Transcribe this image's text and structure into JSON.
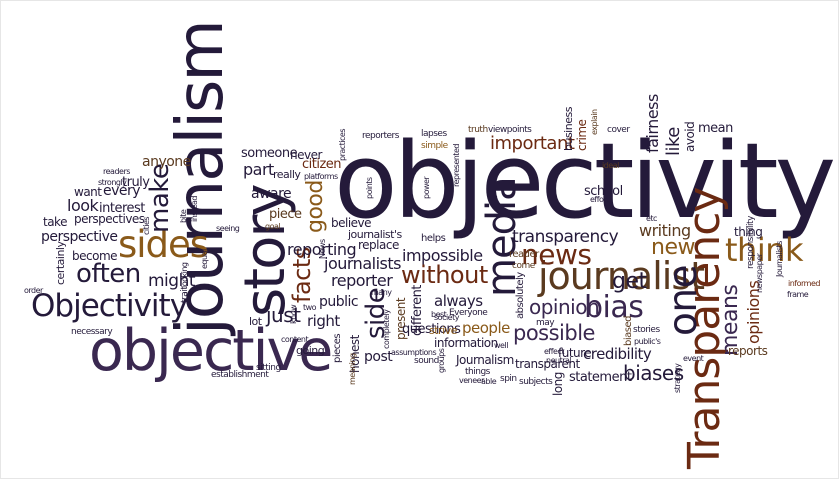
{
  "words": {
    "objectivity": "objectivity",
    "journalism": "journalism",
    "objective": "objective",
    "story": "story",
    "transparency_big": "Transparency",
    "objectivity_cap": "Objectivity",
    "media": "media",
    "journalist": "journalist",
    "sides": "sides",
    "one": "one",
    "news": "news",
    "bias": "bias",
    "think": "think",
    "often": "often",
    "without": "without",
    "opinion": "opinion",
    "possible": "possible",
    "make": "make",
    "facts": "facts",
    "side": "side",
    "means": "means",
    "new": "new",
    "good": "good",
    "biases": "biases",
    "transparency": "transparency",
    "important": "important",
    "like": "like",
    "fairness": "fairness",
    "reporting": "reporting",
    "just": "just",
    "might": "might",
    "impossible": "impossible",
    "journalists": "journalists",
    "reporter": "reporter",
    "get": "get",
    "writing": "writing",
    "credibility": "credibility",
    "people": "people",
    "always": "always",
    "opinions": "opinions",
    "perspective": "perspective",
    "public": "public",
    "right": "right",
    "part": "part",
    "look": "look",
    "want": "want",
    "every": "every",
    "anyone": "anyone",
    "truly": "truly",
    "interest": "interest",
    "perspectives": "perspectives",
    "become": "become",
    "certainly": "certainly",
    "someone": "someone",
    "never": "never",
    "citizen": "citizen",
    "really": "really",
    "aware": "aware",
    "piece": "piece",
    "believe": "believe",
    "replace": "replace",
    "journalists_apos": "journalist's",
    "different": "different",
    "present": "present",
    "honest": "honest",
    "post": "post",
    "questions": "questions",
    "information": "information",
    "statement": "statement",
    "Journalism": "Journalism",
    "transparent": "transparent",
    "future": "future",
    "strive": "strive",
    "reports": "reports",
    "responsibility": "responsibility",
    "avoid": "avoid",
    "mean": "mean",
    "thing": "thing",
    "school": "school",
    "business": "business",
    "crime": "crime",
    "long": "long",
    "absolutely": "absolutely",
    "may": "may",
    "helps": "helps",
    "biased": "biased",
    "take": "take",
    "lot": "lot",
    "two": "two",
    "going": "going",
    "pieces": "pieces",
    "best": "best",
    "Everyone": "Everyone",
    "well": "well",
    "reader": "reader",
    "come": "come",
    "stories": "stories",
    "publics": "public's",
    "neutral": "neutral",
    "effect": "effect",
    "spin": "spin",
    "subjects": "subjects",
    "able": "able",
    "things": "things",
    "sound": "sound",
    "groups": "groups",
    "assumptions": "assumptions",
    "meaning": "meaning",
    "sitting": "sitting",
    "content": "content",
    "establishment": "establishment",
    "necessary": "necessary",
    "order": "order",
    "trait": "trait",
    "equal": "equal",
    "looking": "looking",
    "cities": "cities",
    "instead": "instead",
    "bite": "bite",
    "strongly": "strongly",
    "readers": "readers",
    "seeing": "seeing",
    "goal": "goal",
    "News": "News",
    "many": "many",
    "know": "know",
    "completely": "completely",
    "society": "society",
    "veneer": "veneer",
    "event": "event",
    "strategy": "strategy",
    "newspaper": "newspaper",
    "Journalists": "Journalists",
    "informed": "informed",
    "frame": "frame",
    "etc": "etc",
    "ideal": "ideal",
    "effort": "effort",
    "cover": "cover",
    "explain": "explain",
    "viewpoints": "viewpoints",
    "truth": "truth",
    "represented": "represented",
    "power": "power",
    "lapses": "lapses",
    "simple": "simple",
    "points": "points",
    "reporters": "reporters",
    "practices": "practices",
    "platforms": "platforms"
  }
}
